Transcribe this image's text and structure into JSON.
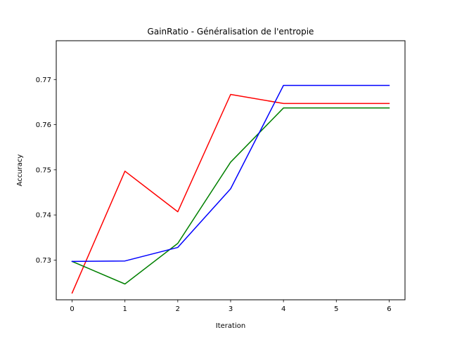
{
  "chart_data": {
    "type": "line",
    "title": "GainRatio - Généralisation de l'entropie",
    "xlabel": "Iteration",
    "ylabel": "Accuracy",
    "x": [
      0,
      1,
      2,
      3,
      4,
      5,
      6
    ],
    "xlim": [
      -0.3,
      6.3
    ],
    "ylim": [
      0.7212,
      0.7786
    ],
    "xticks": [
      "0",
      "1",
      "2",
      "3",
      "4",
      "5",
      "6"
    ],
    "yticks": [
      "0.73",
      "0.74",
      "0.75",
      "0.76",
      "0.77"
    ],
    "grid": false,
    "series": [
      {
        "color": "#ff0000",
        "values": [
          0.7227,
          0.7497,
          0.7407,
          0.7667,
          0.7647,
          0.7647,
          0.7647
        ]
      },
      {
        "color": "#008000",
        "values": [
          0.7297,
          0.7247,
          0.7337,
          0.7517,
          0.7637,
          0.7637,
          0.7637
        ]
      },
      {
        "color": "#0000ff",
        "values": [
          0.7297,
          0.7298,
          0.7328,
          0.7458,
          0.7687,
          0.7687,
          0.7687
        ]
      }
    ]
  }
}
